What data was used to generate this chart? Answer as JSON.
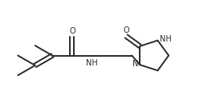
{
  "bg_color": "#ffffff",
  "line_color": "#2a2a2a",
  "line_width": 1.4,
  "font_size": 7.0,
  "fig_width": 2.79,
  "fig_height": 1.39,
  "dpi": 100,
  "xlim": [
    0,
    10
  ],
  "ylim": [
    0,
    5
  ]
}
